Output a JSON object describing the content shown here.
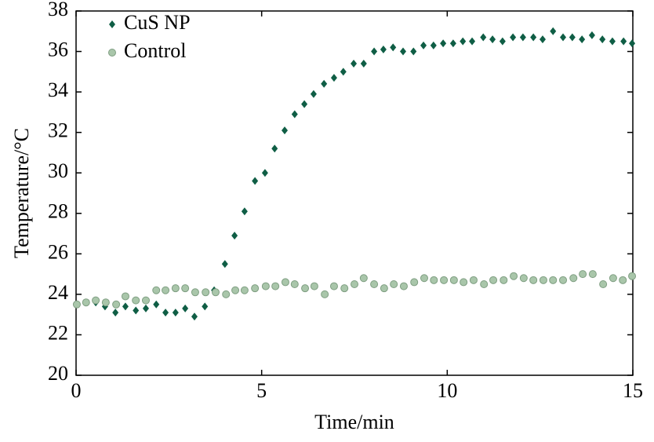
{
  "chart_data": {
    "type": "scatter",
    "xlabel": "Time/min",
    "ylabel": "Temperature/°C",
    "xlim": [
      0,
      15
    ],
    "ylim": [
      20,
      38
    ],
    "xticks": [
      0,
      5,
      10,
      15
    ],
    "yticks": [
      20,
      22,
      24,
      26,
      28,
      30,
      32,
      34,
      36,
      38
    ],
    "legend": "upper left",
    "series": [
      {
        "name": "CuS NP",
        "color": "#0f5e45",
        "marker": "diamond",
        "x": [
          0.27,
          0.53,
          0.78,
          1.06,
          1.33,
          1.61,
          1.88,
          2.16,
          2.41,
          2.68,
          2.94,
          3.19,
          3.47,
          3.72,
          4.01,
          4.27,
          4.54,
          4.82,
          5.09,
          5.35,
          5.62,
          5.89,
          6.15,
          6.4,
          6.68,
          6.95,
          7.2,
          7.48,
          7.75,
          8.03,
          8.28,
          8.54,
          8.81,
          9.09,
          9.36,
          9.63,
          9.89,
          10.16,
          10.42,
          10.67,
          10.97,
          11.22,
          11.49,
          11.77,
          12.04,
          12.32,
          12.57,
          12.85,
          13.12,
          13.37,
          13.63,
          13.9,
          14.18,
          14.45,
          14.75,
          14.98
        ],
        "values": [
          23.6,
          23.6,
          23.4,
          23.1,
          23.4,
          23.2,
          23.3,
          23.5,
          23.1,
          23.1,
          23.3,
          22.9,
          23.4,
          24.2,
          25.5,
          26.9,
          28.1,
          29.6,
          30.0,
          31.2,
          32.1,
          32.9,
          33.4,
          33.9,
          34.4,
          34.7,
          35.0,
          35.4,
          35.4,
          36.0,
          36.1,
          36.2,
          36.0,
          36.0,
          36.3,
          36.3,
          36.4,
          36.4,
          36.5,
          36.5,
          36.7,
          36.6,
          36.5,
          36.7,
          36.7,
          36.7,
          36.6,
          37.0,
          36.7,
          36.7,
          36.6,
          36.8,
          36.6,
          36.5,
          36.5,
          36.4
        ]
      },
      {
        "name": "Control",
        "color": "#a9c6aa",
        "marker": "circle",
        "x": [
          0.02,
          0.27,
          0.53,
          0.8,
          1.08,
          1.33,
          1.61,
          1.88,
          2.16,
          2.41,
          2.68,
          2.94,
          3.21,
          3.49,
          3.76,
          4.04,
          4.29,
          4.54,
          4.82,
          5.11,
          5.37,
          5.64,
          5.89,
          6.17,
          6.42,
          6.7,
          6.95,
          7.23,
          7.5,
          7.75,
          8.03,
          8.3,
          8.56,
          8.83,
          9.11,
          9.38,
          9.64,
          9.91,
          10.18,
          10.44,
          10.71,
          10.99,
          11.24,
          11.52,
          11.79,
          12.06,
          12.32,
          12.59,
          12.85,
          13.12,
          13.4,
          13.65,
          13.92,
          14.2,
          14.47,
          14.73,
          14.98
        ],
        "values": [
          23.5,
          23.6,
          23.7,
          23.6,
          23.5,
          23.9,
          23.7,
          23.7,
          24.2,
          24.2,
          24.3,
          24.3,
          24.1,
          24.1,
          24.1,
          24.0,
          24.2,
          24.2,
          24.3,
          24.4,
          24.4,
          24.6,
          24.5,
          24.3,
          24.4,
          24.0,
          24.4,
          24.3,
          24.5,
          24.8,
          24.5,
          24.3,
          24.5,
          24.4,
          24.6,
          24.8,
          24.7,
          24.7,
          24.7,
          24.6,
          24.7,
          24.5,
          24.7,
          24.7,
          24.9,
          24.8,
          24.7,
          24.7,
          24.7,
          24.7,
          24.8,
          25.0,
          25.0,
          24.5,
          24.8,
          24.7,
          24.9
        ]
      }
    ]
  }
}
